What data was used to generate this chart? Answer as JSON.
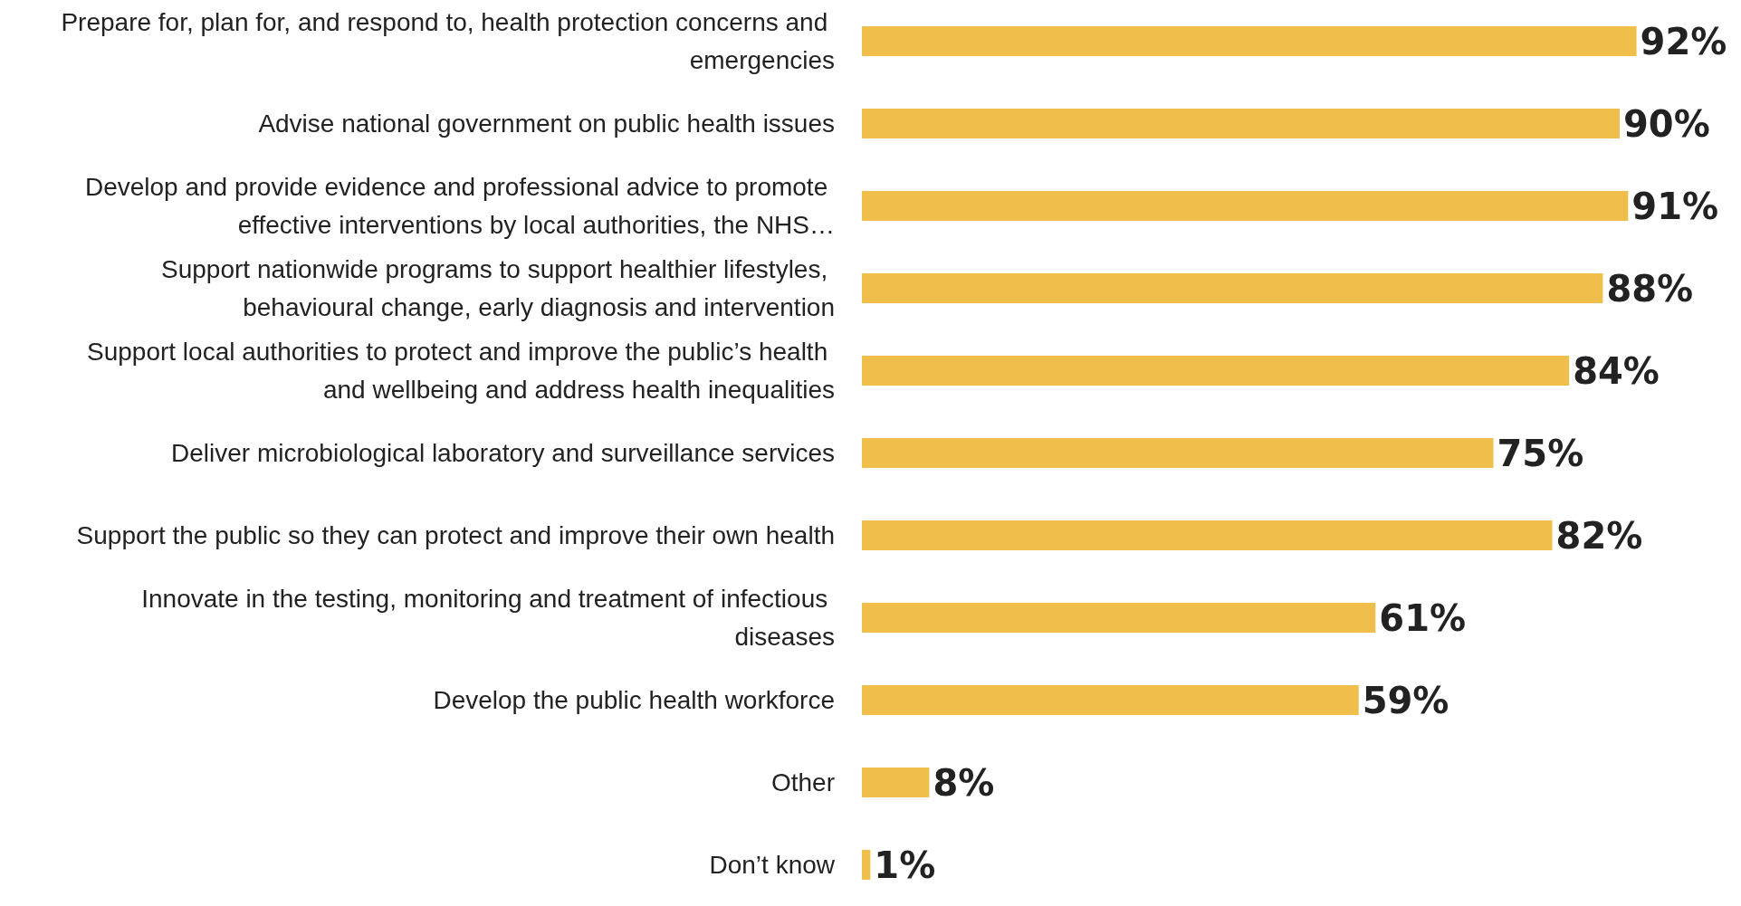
{
  "chart_data": {
    "type": "bar",
    "orientation": "horizontal",
    "categories": [
      "Prepare for, plan for, and respond to, health protection concerns and emergencies",
      "Advise national government on public health issues",
      "Develop and provide evidence and professional advice to promote effective interventions by local authorities, the NHS…",
      "Support nationwide programs to support healthier lifestyles, behavioural change, early diagnosis and intervention",
      "Support local authorities to protect and improve the public’s health and wellbeing and address health inequalities",
      "Deliver microbiological laboratory and surveillance services",
      "Support the public so they can protect and improve their own health",
      "Innovate in the testing, monitoring and treatment of infectious diseases",
      "Develop the public health workforce",
      "Other",
      "Don’t know"
    ],
    "values": [
      92,
      90,
      91,
      88,
      84,
      75,
      82,
      61,
      59,
      8,
      1
    ],
    "value_labels": [
      "92%",
      "90%",
      "91%",
      "88%",
      "84%",
      "75%",
      "82%",
      "61%",
      "59%",
      "8%",
      "1%"
    ],
    "color": "#f0bf4b",
    "tick_labels": "y",
    "grid": false
  }
}
